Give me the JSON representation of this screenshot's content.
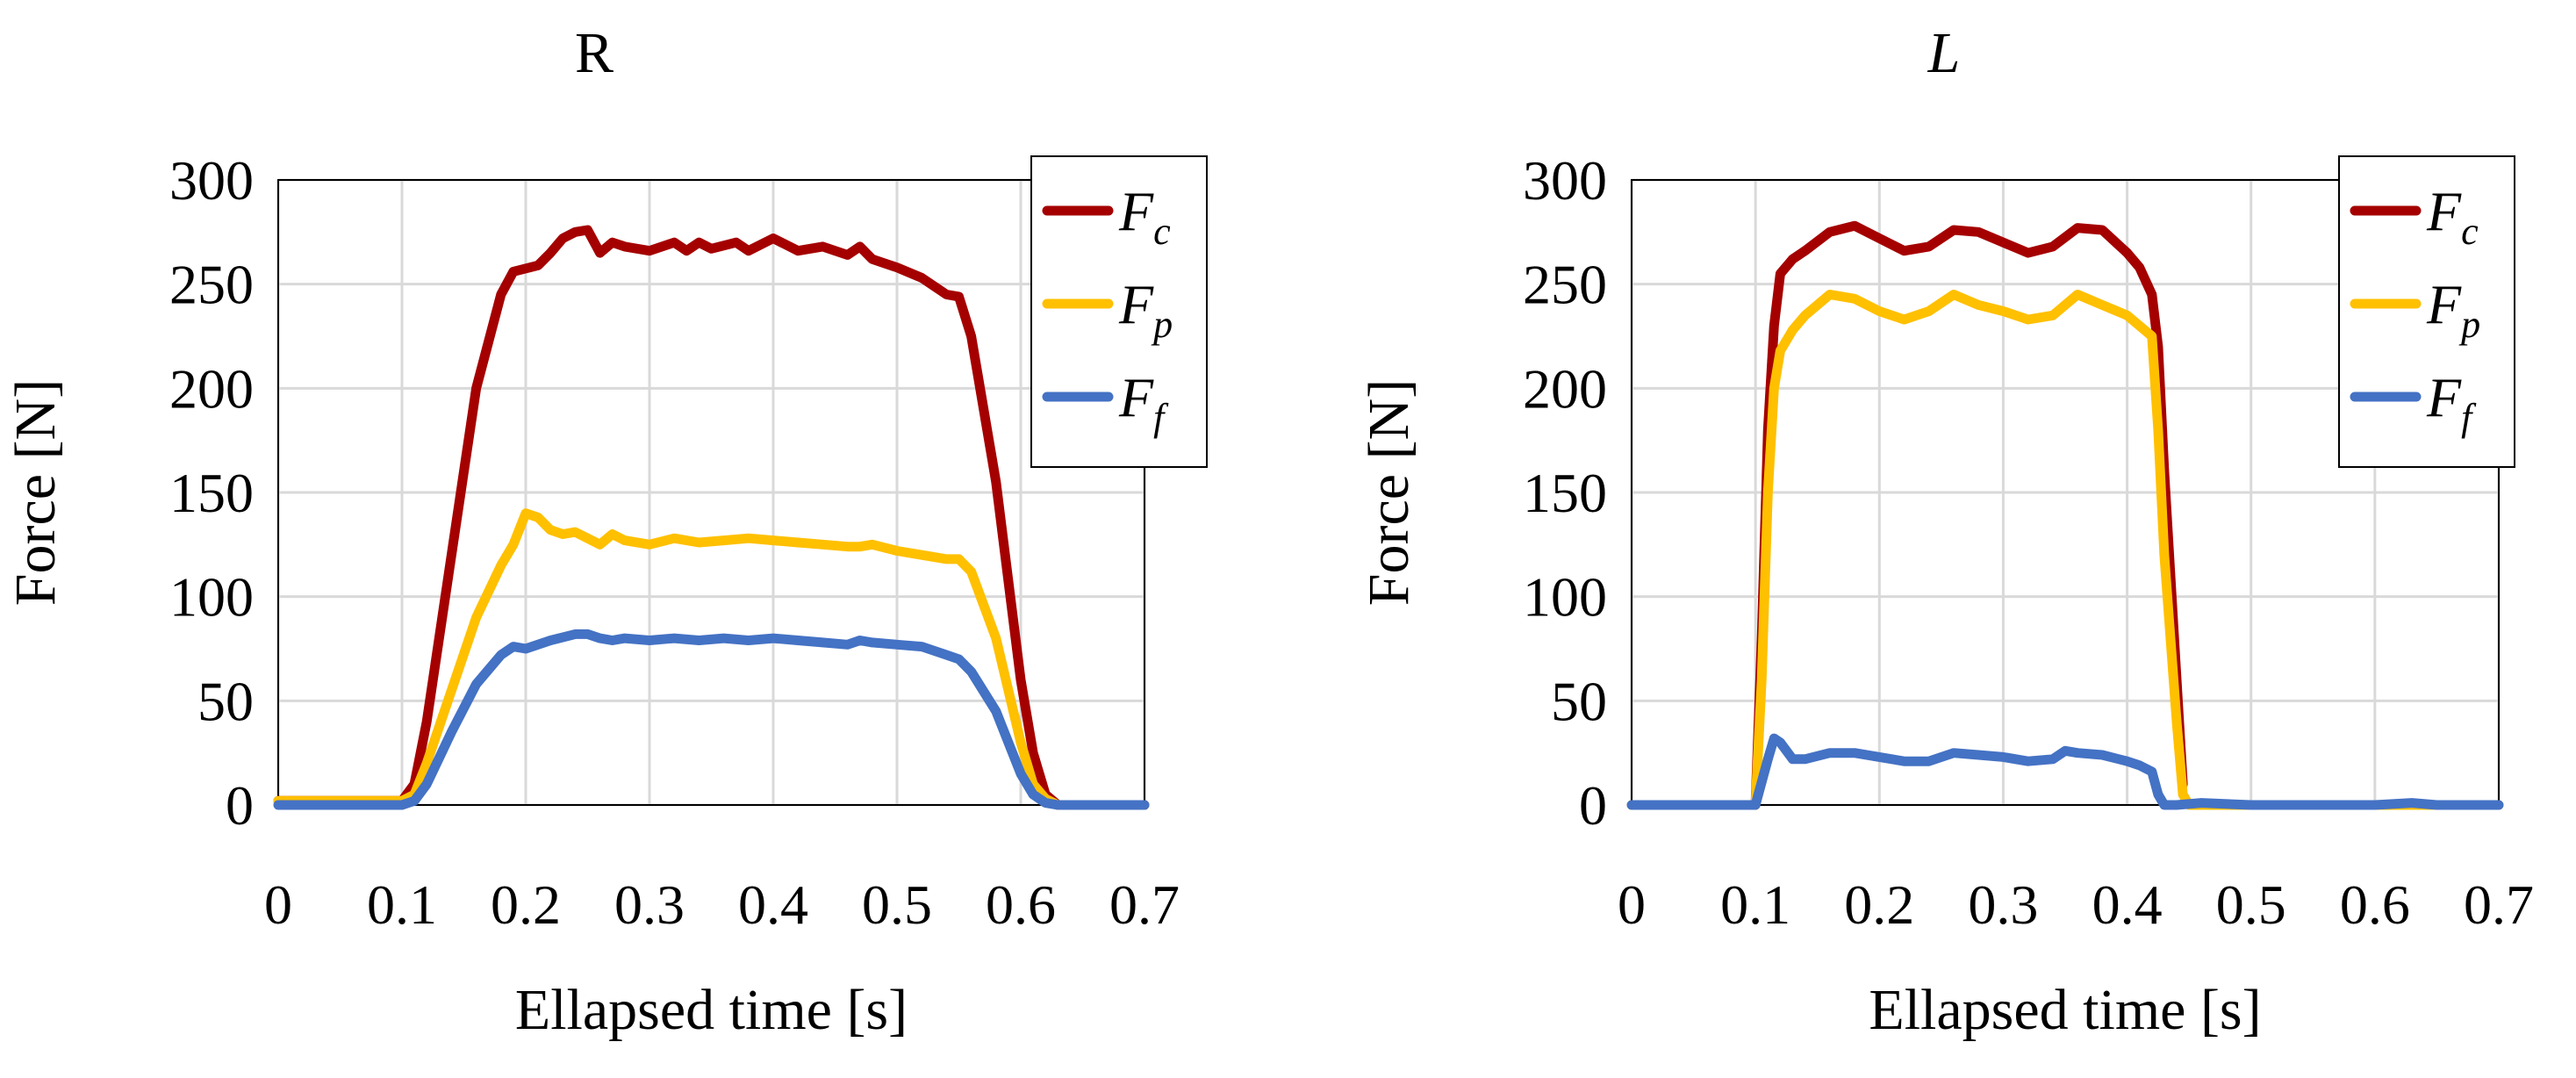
{
  "chart_data": [
    {
      "type": "line",
      "title": "R",
      "title_italic": false,
      "xlabel": "Ellapsed time [s]",
      "ylabel": "Force [N]",
      "xlim": [
        0,
        0.7
      ],
      "ylim": [
        0,
        300
      ],
      "xticks": [
        0,
        0.1,
        0.2,
        0.3,
        0.4,
        0.5,
        0.6,
        0.7
      ],
      "xtick_labels": [
        "0",
        "0.1",
        "0.2",
        "0.3",
        "0.4",
        "0.5",
        "0.6",
        "0.7"
      ],
      "yticks": [
        0,
        50,
        100,
        150,
        200,
        250,
        300
      ],
      "ytick_labels": [
        "0",
        "50",
        "100",
        "150",
        "200",
        "250",
        "300"
      ],
      "grid": true,
      "legend_position": "top-right",
      "series": [
        {
          "name": "Fc",
          "label_main": "F",
          "label_sub": "c",
          "color": "#A50000",
          "x": [
            0,
            0.05,
            0.1,
            0.11,
            0.12,
            0.14,
            0.16,
            0.18,
            0.19,
            0.21,
            0.22,
            0.23,
            0.24,
            0.25,
            0.26,
            0.27,
            0.28,
            0.3,
            0.32,
            0.33,
            0.34,
            0.35,
            0.37,
            0.38,
            0.4,
            0.42,
            0.44,
            0.46,
            0.47,
            0.48,
            0.5,
            0.52,
            0.54,
            0.55,
            0.56,
            0.58,
            0.6,
            0.61,
            0.62,
            0.63,
            0.65,
            0.7
          ],
          "y": [
            2,
            2,
            2,
            10,
            40,
            120,
            200,
            245,
            256,
            259,
            265,
            272,
            275,
            276,
            265,
            270,
            268,
            266,
            270,
            266,
            270,
            267,
            270,
            266,
            272,
            266,
            268,
            264,
            268,
            262,
            258,
            253,
            245,
            244,
            225,
            155,
            60,
            25,
            5,
            0,
            0,
            0
          ]
        },
        {
          "name": "Fp",
          "label_main": "F",
          "label_sub": "p",
          "color": "#FFC000",
          "x": [
            0,
            0.05,
            0.1,
            0.11,
            0.12,
            0.14,
            0.16,
            0.18,
            0.19,
            0.2,
            0.21,
            0.22,
            0.23,
            0.24,
            0.25,
            0.26,
            0.27,
            0.28,
            0.3,
            0.32,
            0.34,
            0.36,
            0.38,
            0.4,
            0.42,
            0.44,
            0.46,
            0.47,
            0.48,
            0.5,
            0.52,
            0.54,
            0.55,
            0.56,
            0.58,
            0.6,
            0.61,
            0.62,
            0.63,
            0.65,
            0.7
          ],
          "y": [
            2,
            2,
            2,
            5,
            20,
            55,
            90,
            115,
            125,
            140,
            138,
            132,
            130,
            131,
            128,
            125,
            130,
            127,
            125,
            128,
            126,
            127,
            128,
            127,
            126,
            125,
            124,
            124,
            125,
            122,
            120,
            118,
            118,
            112,
            80,
            30,
            10,
            3,
            0,
            0,
            0
          ]
        },
        {
          "name": "Ff",
          "label_main": "F",
          "label_sub": "f",
          "color": "#4472C4",
          "x": [
            0,
            0.05,
            0.1,
            0.11,
            0.12,
            0.14,
            0.16,
            0.18,
            0.19,
            0.2,
            0.22,
            0.24,
            0.25,
            0.26,
            0.27,
            0.28,
            0.3,
            0.32,
            0.34,
            0.36,
            0.38,
            0.4,
            0.42,
            0.44,
            0.46,
            0.47,
            0.48,
            0.5,
            0.52,
            0.54,
            0.55,
            0.56,
            0.58,
            0.6,
            0.61,
            0.62,
            0.63,
            0.65,
            0.7
          ],
          "y": [
            0,
            0,
            0,
            2,
            10,
            35,
            58,
            72,
            76,
            75,
            79,
            82,
            82,
            80,
            79,
            80,
            79,
            80,
            79,
            80,
            79,
            80,
            79,
            78,
            77,
            79,
            78,
            77,
            76,
            72,
            70,
            64,
            45,
            15,
            5,
            1,
            0,
            0,
            0
          ]
        }
      ]
    },
    {
      "type": "line",
      "title": "L",
      "title_italic": true,
      "xlabel": "Ellapsed time [s]",
      "ylabel": "Force [N]",
      "xlim": [
        0,
        0.7
      ],
      "ylim": [
        0,
        300
      ],
      "xticks": [
        0,
        0.1,
        0.2,
        0.3,
        0.4,
        0.5,
        0.6,
        0.7
      ],
      "xtick_labels": [
        "0",
        "0.1",
        "0.2",
        "0.3",
        "0.4",
        "0.5",
        "0.6",
        "0.7"
      ],
      "yticks": [
        0,
        50,
        100,
        150,
        200,
        250,
        300
      ],
      "ytick_labels": [
        "0",
        "50",
        "100",
        "150",
        "200",
        "250",
        "300"
      ],
      "grid": true,
      "legend_position": "top-right",
      "series": [
        {
          "name": "Fc",
          "label_main": "F",
          "label_sub": "c",
          "color": "#A50000",
          "x": [
            0.1,
            0.105,
            0.11,
            0.115,
            0.12,
            0.13,
            0.14,
            0.16,
            0.18,
            0.2,
            0.22,
            0.24,
            0.26,
            0.28,
            0.3,
            0.32,
            0.34,
            0.36,
            0.38,
            0.4,
            0.41,
            0.42,
            0.425,
            0.43,
            0.44,
            0.445
          ],
          "y": [
            0,
            80,
            180,
            230,
            255,
            262,
            266,
            275,
            278,
            272,
            266,
            268,
            276,
            275,
            270,
            265,
            268,
            277,
            276,
            265,
            258,
            245,
            220,
            160,
            60,
            10
          ]
        },
        {
          "name": "Fp",
          "label_main": "F",
          "label_sub": "p",
          "color": "#FFC000",
          "x": [
            0,
            0.05,
            0.1,
            0.105,
            0.11,
            0.115,
            0.12,
            0.13,
            0.14,
            0.16,
            0.18,
            0.2,
            0.22,
            0.24,
            0.26,
            0.28,
            0.3,
            0.32,
            0.34,
            0.36,
            0.38,
            0.4,
            0.42,
            0.425,
            0.43,
            0.44,
            0.445,
            0.45,
            0.5,
            0.7
          ],
          "y": [
            0,
            0,
            0,
            60,
            150,
            200,
            218,
            228,
            235,
            245,
            243,
            237,
            233,
            237,
            245,
            240,
            237,
            233,
            235,
            245,
            240,
            235,
            225,
            180,
            120,
            40,
            5,
            0,
            0,
            0
          ]
        },
        {
          "name": "Ff",
          "label_main": "F",
          "label_sub": "f",
          "color": "#4472C4",
          "x": [
            0,
            0.03,
            0.05,
            0.1,
            0.11,
            0.115,
            0.12,
            0.13,
            0.14,
            0.16,
            0.18,
            0.2,
            0.22,
            0.24,
            0.26,
            0.28,
            0.3,
            0.32,
            0.34,
            0.35,
            0.36,
            0.38,
            0.4,
            0.41,
            0.42,
            0.425,
            0.43,
            0.44,
            0.46,
            0.5,
            0.55,
            0.6,
            0.63,
            0.65,
            0.7
          ],
          "y": [
            0,
            0,
            0,
            0,
            22,
            32,
            30,
            22,
            22,
            25,
            25,
            23,
            21,
            21,
            25,
            24,
            23,
            21,
            22,
            26,
            25,
            24,
            21,
            19,
            16,
            5,
            0,
            0,
            1,
            0,
            0,
            0,
            1,
            0,
            0
          ]
        }
      ]
    }
  ]
}
